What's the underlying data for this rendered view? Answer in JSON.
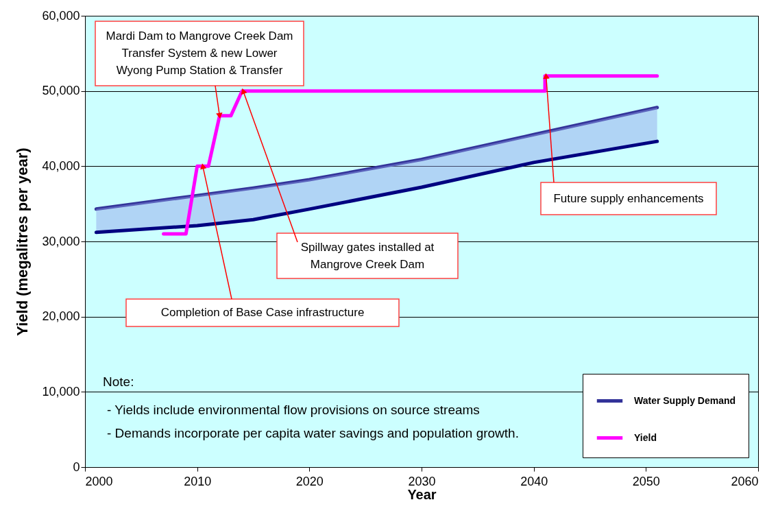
{
  "chart_data": {
    "type": "line",
    "xlabel": "Year",
    "ylabel": "Yield (megalitres per year)",
    "xlim": [
      2000,
      2060
    ],
    "xticks": [
      2000,
      2010,
      2020,
      2030,
      2040,
      2050,
      2060
    ],
    "ylim": [
      0,
      60000
    ],
    "yticks": [
      0,
      {
        "value": 10000,
        "label": "10,000"
      },
      {
        "value": 20000,
        "label": "20,000"
      },
      {
        "value": 30000,
        "label": "30,000"
      },
      {
        "value": 40000,
        "label": "40,000"
      },
      {
        "value": 50000,
        "label": "50,000"
      },
      {
        "value": 60000,
        "label": "60,000"
      }
    ],
    "grid": "y",
    "legend": "bottom right",
    "series": [
      {
        "name": "Water Supply Demand",
        "color": "#333399",
        "x": [
          2001,
          2010,
          2015,
          2020,
          2030,
          2040,
          2051
        ],
        "values": [
          34300,
          36100,
          37100,
          38200,
          40900,
          44200,
          47800
        ]
      },
      {
        "color": "#000080",
        "x": [
          2001,
          2010,
          2015,
          2020,
          2030,
          2040,
          2051
        ],
        "values": [
          31200,
          32100,
          32900,
          34300,
          37200,
          40500,
          43300
        ],
        "lower": [
          31200,
          32100,
          32900,
          34300,
          37200,
          40500,
          43300
        ],
        "upper": [
          34300,
          36100,
          37100,
          38200,
          40900,
          44200,
          47800
        ]
      },
      {
        "name": "Yield",
        "color": "#ff00ff",
        "x": [
          2007,
          2009,
          2010,
          2011,
          2012,
          2013,
          2014,
          2041,
          2041,
          2051
        ],
        "values": [
          31000,
          31000,
          40000,
          40000,
          46700,
          46700,
          50000,
          50000,
          52000,
          52000
        ]
      }
    ],
    "annotations": [
      {
        "text": "Mardi Dam to Mangrove Creek Dam\nTransfer System & new Lower\nWyong Pump Station & Transfer",
        "x": 2012,
        "y": 46700
      },
      {
        "text": "Completion of Base Case infrastructure",
        "x": 2010.5,
        "y": 40000
      },
      {
        "text": "Spillway gates installed at\nMangrove Creek Dam",
        "x": 2014.1,
        "y": 50000
      },
      {
        "text": "Future supply enhancements",
        "x": 2041.1,
        "y": 52000
      },
      "Note:",
      "- Yields include environmental flow provisions on source streams",
      "-  Demands incorporate per capita water savings and population growth."
    ]
  }
}
